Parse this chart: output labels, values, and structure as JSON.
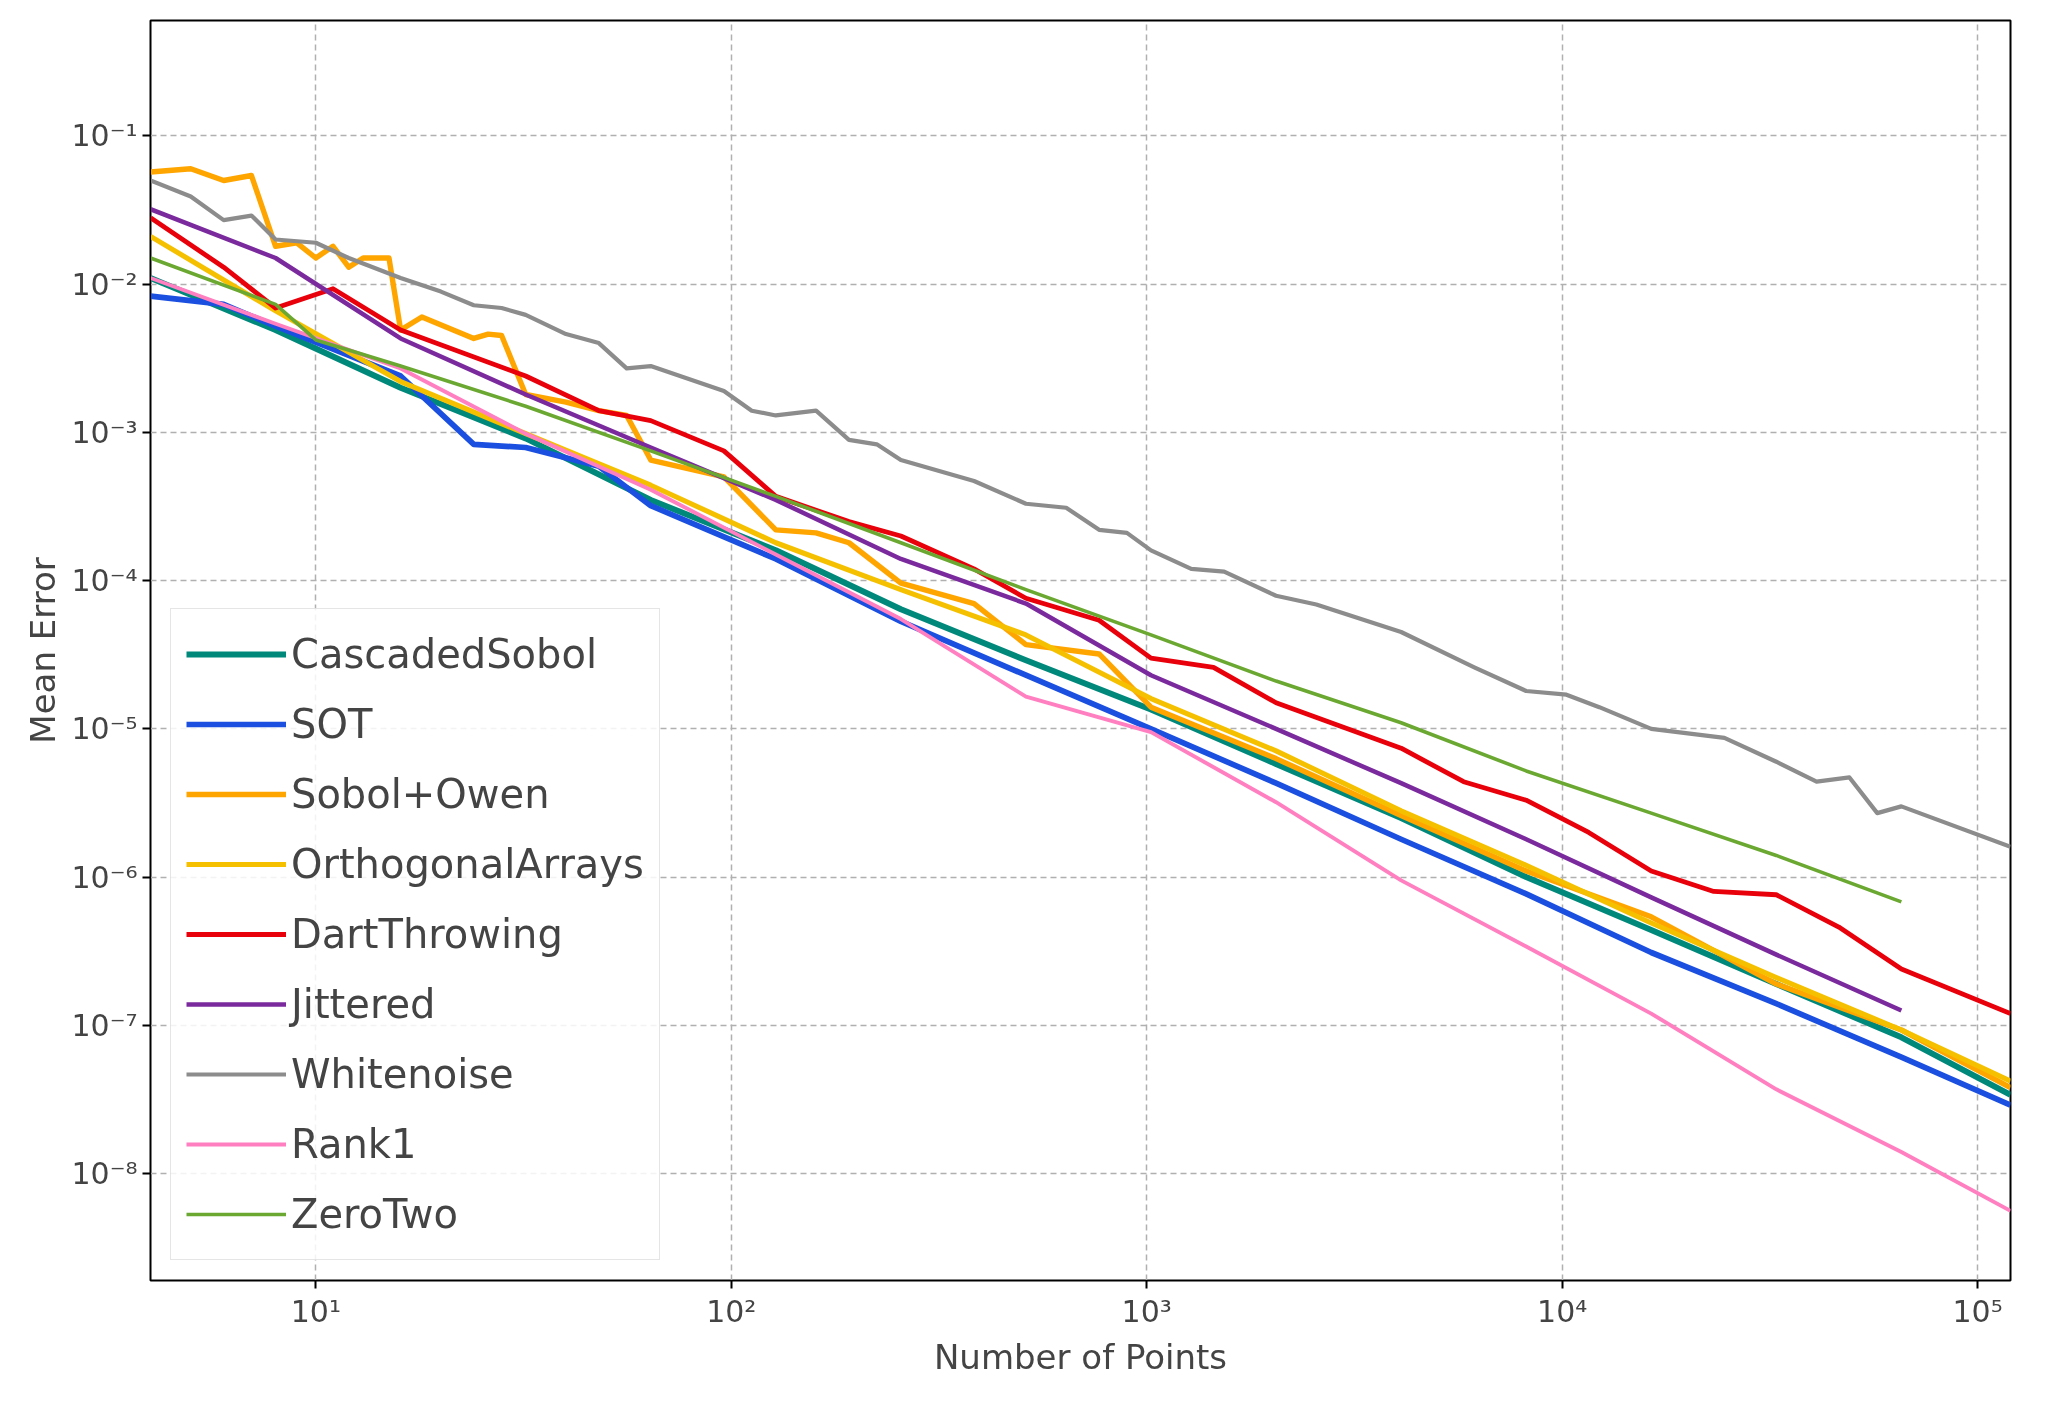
{
  "chart_data": {
    "type": "line",
    "xlabel": "Number of Points",
    "ylabel": "Mean Error",
    "log": "xy",
    "grid": true,
    "legend": "bottom left",
    "line_style": "solid",
    "marker": "none",
    "xlim": [
      4,
      120000
    ],
    "ylim": [
      1.9e-09,
      0.6
    ],
    "xticks": [
      {
        "value": 10,
        "label": "10¹"
      },
      {
        "value": 100,
        "label": "10²"
      },
      {
        "value": 1000,
        "label": "10³"
      },
      {
        "value": 10000,
        "label": "10⁴"
      },
      {
        "value": 100000,
        "label": "10⁵"
      }
    ],
    "yticks": [
      {
        "value": 1e-08,
        "label": "10⁻⁸"
      },
      {
        "value": 1e-07,
        "label": "10⁻⁷"
      },
      {
        "value": 1e-06,
        "label": "10⁻⁶"
      },
      {
        "value": 1e-05,
        "label": "10⁻⁵"
      },
      {
        "value": 0.0001,
        "label": "10⁻⁴"
      },
      {
        "value": 0.001,
        "label": "10⁻³"
      },
      {
        "value": 0.01,
        "label": "10⁻²"
      },
      {
        "value": 0.1,
        "label": "10⁻¹"
      }
    ],
    "series": [
      {
        "name": "CascadedSobol",
        "color": "#00897b",
        "x": [
          4,
          8,
          16,
          32,
          64,
          128,
          256,
          512,
          1024,
          2048,
          4096,
          8192,
          16384,
          32768,
          65536,
          120000
        ],
        "values": [
          0.011,
          0.0049,
          0.002,
          0.00091,
          0.00035,
          0.00016,
          6.4e-05,
          2.9e-05,
          1.35e-05,
          5.8e-06,
          2.5e-06,
          1e-06,
          4.4e-07,
          1.9e-07,
          8.3e-08,
          3.4e-08
        ]
      },
      {
        "name": "SOT",
        "color": "#1a4fe0",
        "x": [
          4,
          6,
          8,
          16,
          24,
          32,
          48,
          64,
          128,
          256,
          512,
          1024,
          2048,
          4096,
          8192,
          16384,
          32768,
          65536,
          120000
        ],
        "values": [
          0.0083,
          0.0073,
          0.0052,
          0.0024,
          0.00083,
          0.00079,
          0.00059,
          0.00032,
          0.00014,
          5.3e-05,
          2.3e-05,
          1e-05,
          4.3e-06,
          1.8e-06,
          7.7e-07,
          3.1e-07,
          1.4e-07,
          6.1e-08,
          2.9e-08
        ]
      },
      {
        "name": "Sobol+Owen",
        "color": "#ffa500",
        "x": [
          4,
          5,
          6,
          7,
          8,
          9,
          10,
          11,
          12,
          13,
          15,
          16,
          18,
          24,
          26,
          28,
          32,
          40,
          48,
          56,
          64,
          96,
          128,
          160,
          192,
          256,
          384,
          512,
          768,
          1024,
          2048,
          4096,
          8192,
          16384,
          32768,
          65536,
          120000
        ],
        "values": [
          0.057,
          0.06,
          0.05,
          0.054,
          0.018,
          0.019,
          0.015,
          0.018,
          0.013,
          0.015,
          0.015,
          0.0049,
          0.006,
          0.0043,
          0.0046,
          0.0045,
          0.0018,
          0.0016,
          0.0014,
          0.0013,
          0.00065,
          0.0005,
          0.00022,
          0.00021,
          0.00018,
          9.6e-05,
          7e-05,
          3.7e-05,
          3.2e-05,
          1.4e-05,
          6.3e-06,
          2.6e-06,
          1.1e-06,
          5.4e-07,
          1.9e-07,
          9.3e-08,
          3.8e-08
        ]
      },
      {
        "name": "OrthogonalArrays",
        "color": "#f5c000",
        "x": [
          4,
          8,
          16,
          32,
          64,
          128,
          256,
          512,
          1024,
          2048,
          4096,
          8192,
          16384,
          32768,
          65536,
          120000
        ],
        "values": [
          0.021,
          0.0066,
          0.0022,
          0.00098,
          0.00044,
          0.00018,
          8.7e-05,
          4.3e-05,
          1.6e-05,
          7.1e-06,
          2.8e-06,
          1.2e-06,
          4.9e-07,
          2.1e-07,
          9.3e-08,
          4.2e-08
        ]
      },
      {
        "name": "DartThrowing",
        "color": "#e8000b",
        "x": [
          4,
          6,
          8,
          11,
          16,
          32,
          48,
          64,
          96,
          128,
          192,
          256,
          384,
          512,
          768,
          1024,
          1448,
          2048,
          4096,
          5792,
          8192,
          11585,
          16384,
          23170,
          32768,
          46341,
          65536,
          120000
        ],
        "values": [
          0.028,
          0.013,
          0.0069,
          0.0093,
          0.0049,
          0.0024,
          0.0014,
          0.0012,
          0.00075,
          0.00037,
          0.00025,
          0.0002,
          0.00012,
          7.6e-05,
          5.4e-05,
          3e-05,
          2.6e-05,
          1.5e-05,
          7.4e-06,
          4.4e-06,
          3.3e-06,
          2e-06,
          1.1e-06,
          8e-07,
          7.6e-07,
          4.6e-07,
          2.4e-07,
          1.2e-07
        ]
      },
      {
        "name": "Jittered",
        "color": "#7b2a9e",
        "x": [
          4,
          8,
          16,
          32,
          64,
          128,
          256,
          512,
          1024,
          2048,
          4096,
          8192,
          16384,
          32768,
          65536
        ],
        "values": [
          0.032,
          0.015,
          0.0043,
          0.0018,
          0.00079,
          0.00035,
          0.00014,
          7e-05,
          2.3e-05,
          1e-05,
          4.3e-06,
          1.8e-06,
          7.3e-07,
          3e-07,
          1.26e-07
        ]
      },
      {
        "name": "Whitenoise",
        "color": "#8c8c8c",
        "x": [
          4,
          5,
          6,
          7,
          8,
          10,
          12,
          16,
          20,
          24,
          28,
          32,
          40,
          48,
          56,
          64,
          96,
          112,
          128,
          160,
          192,
          224,
          256,
          384,
          512,
          640,
          768,
          896,
          1024,
          1280,
          1536,
          2048,
          2560,
          4096,
          6144,
          8192,
          10240,
          12288,
          16384,
          24576,
          32768,
          40960,
          49152,
          57344,
          65536,
          120000
        ],
        "values": [
          0.05,
          0.039,
          0.027,
          0.029,
          0.02,
          0.019,
          0.015,
          0.011,
          0.0089,
          0.0072,
          0.0069,
          0.0062,
          0.0046,
          0.004,
          0.0027,
          0.0028,
          0.0019,
          0.0014,
          0.0013,
          0.0014,
          0.00089,
          0.00083,
          0.00065,
          0.00047,
          0.00033,
          0.00031,
          0.00022,
          0.00021,
          0.00016,
          0.00012,
          0.000115,
          7.9e-05,
          6.9e-05,
          4.5e-05,
          2.6e-05,
          1.8e-05,
          1.7e-05,
          1.4e-05,
          1e-05,
          8.7e-06,
          6e-06,
          4.4e-06,
          4.7e-06,
          2.7e-06,
          3e-06,
          1.6e-06
        ]
      },
      {
        "name": "Rank1",
        "color": "#ff7fc0",
        "x": [
          4,
          8,
          16,
          32,
          64,
          128,
          256,
          512,
          1024,
          2048,
          4096,
          8192,
          16384,
          32768,
          65536,
          120000
        ],
        "values": [
          0.011,
          0.0054,
          0.0027,
          0.00098,
          0.00041,
          0.00015,
          5.5e-05,
          1.65e-05,
          9.5e-06,
          3.2e-06,
          9.5e-07,
          3.4e-07,
          1.2e-07,
          3.7e-08,
          1.4e-08,
          5.6e-09
        ]
      },
      {
        "name": "ZeroTwo",
        "color": "#6aa832",
        "x": [
          4,
          8,
          10,
          16,
          32,
          64,
          128,
          256,
          512,
          1024,
          2048,
          4096,
          8192,
          16384,
          32768,
          65536
        ],
        "values": [
          0.015,
          0.0073,
          0.0042,
          0.0028,
          0.0015,
          0.00075,
          0.00037,
          0.00018,
          8.7e-05,
          4.3e-05,
          2.1e-05,
          1.1e-05,
          5.2e-06,
          2.7e-06,
          1.4e-06,
          6.8e-07
        ]
      }
    ]
  }
}
